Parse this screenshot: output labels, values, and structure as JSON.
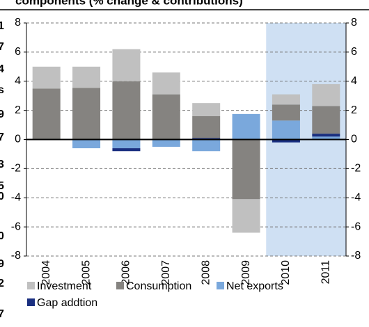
{
  "chart_data": {
    "type": "bar",
    "stacked": true,
    "title": "components (% change & contributions)",
    "categories": [
      "2004",
      "2005",
      "2006",
      "2007",
      "2008",
      "2009",
      "2010",
      "2011"
    ],
    "series": [
      {
        "name": "Investment",
        "color": "#c0c0c0",
        "values": [
          1.5,
          1.45,
          2.2,
          1.5,
          0.9,
          -2.3,
          0.7,
          1.5
        ]
      },
      {
        "name": "Consumption",
        "color": "#858380",
        "values": [
          3.5,
          3.55,
          4.0,
          3.1,
          1.5,
          -4.1,
          1.1,
          1.9
        ]
      },
      {
        "name": "Net exports",
        "color": "#7aa8dc",
        "values": [
          0,
          -0.6,
          -0.6,
          -0.5,
          -0.8,
          1.75,
          1.3,
          0.2
        ]
      },
      {
        "name": "Gap addtion",
        "color": "#1a2f80",
        "values": [
          0,
          0,
          -0.2,
          0,
          0.1,
          0,
          -0.2,
          0.2
        ]
      }
    ],
    "ylim": [
      -8,
      8
    ],
    "yticks": [
      -8,
      -6,
      -4,
      -2,
      0,
      2,
      4,
      6,
      8
    ],
    "grid": true,
    "highlight": {
      "start": 6,
      "end": 7,
      "color": "#cfe0f3"
    },
    "left_fragments": [
      "1",
      "7",
      "4",
      "s",
      "9",
      "7",
      "3",
      "5",
      "0",
      "0",
      "9",
      "2",
      "7"
    ]
  }
}
